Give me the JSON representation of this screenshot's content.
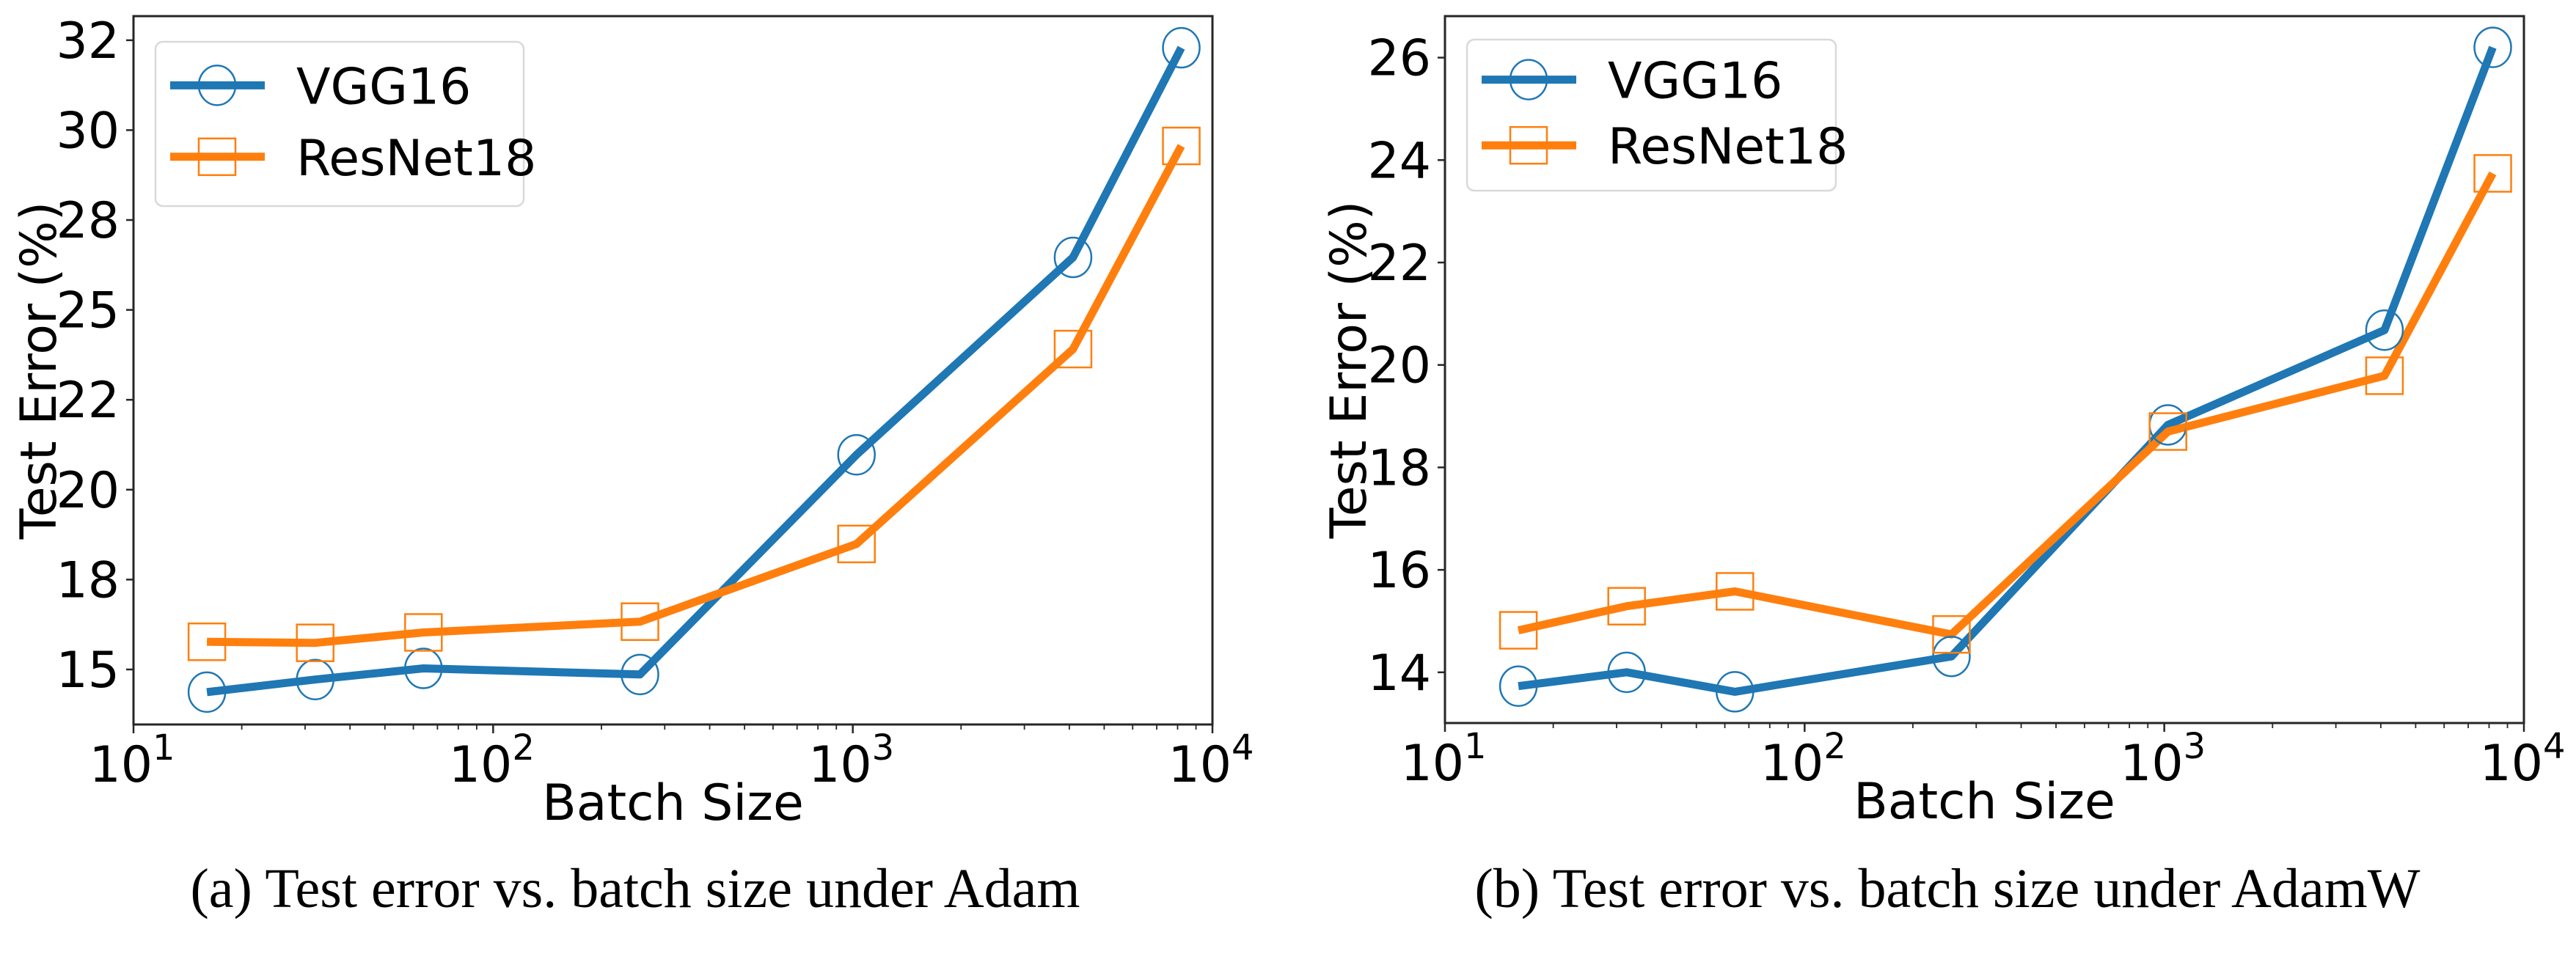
{
  "figure": {
    "captions": [
      "(a) Test error vs. batch size under Adam",
      "(b) Test error vs. batch size under AdamW"
    ]
  },
  "colors": {
    "vgg16": "#1f77b4",
    "resnet18": "#ff7f0e",
    "axes": "#262626",
    "legend_border": "#d9d9d9"
  },
  "chart_data": [
    {
      "type": "line",
      "title": "(a) Test error vs. batch size under Adam",
      "xlabel": "Batch Size",
      "ylabel": "Test Error (%)",
      "xscale": "log",
      "xlim": [
        10,
        10000
      ],
      "ylim": [
        13.47,
        33.17
      ],
      "xticks": [
        {
          "value": 10,
          "base": "10",
          "exp": "1"
        },
        {
          "value": 100,
          "base": "10",
          "exp": "2"
        },
        {
          "value": 1000,
          "base": "10",
          "exp": "3"
        },
        {
          "value": 10000,
          "base": "10",
          "exp": "4"
        }
      ],
      "yticks": [
        {
          "value": 15,
          "label": "15"
        },
        {
          "value": 17.5,
          "label": "18"
        },
        {
          "value": 20,
          "label": "20"
        },
        {
          "value": 22.5,
          "label": "22"
        },
        {
          "value": 25,
          "label": "25"
        },
        {
          "value": 27.5,
          "label": "28"
        },
        {
          "value": 30,
          "label": "30"
        },
        {
          "value": 32.5,
          "label": "32"
        }
      ],
      "grid": false,
      "legend_position": "upper-left",
      "x": [
        16,
        32,
        64,
        256,
        1024,
        4096,
        8192
      ],
      "series": [
        {
          "name": "VGG16",
          "marker": "circle",
          "color_key": "vgg16",
          "values": [
            14.37,
            14.72,
            15.03,
            14.86,
            20.97,
            26.46,
            32.29
          ]
        },
        {
          "name": "ResNet18",
          "marker": "square",
          "color_key": "resnet18",
          "values": [
            15.77,
            15.74,
            16.03,
            16.33,
            18.49,
            23.91,
            29.56
          ]
        }
      ]
    },
    {
      "type": "line",
      "title": "(b) Test error vs. batch size under AdamW",
      "xlabel": "Batch Size",
      "ylabel": "Test Error (%)",
      "xscale": "log",
      "xlim": [
        10,
        10000
      ],
      "ylim": [
        13.01,
        26.81
      ],
      "xticks": [
        {
          "value": 10,
          "base": "10",
          "exp": "1"
        },
        {
          "value": 100,
          "base": "10",
          "exp": "2"
        },
        {
          "value": 1000,
          "base": "10",
          "exp": "3"
        },
        {
          "value": 10000,
          "base": "10",
          "exp": "4"
        }
      ],
      "yticks": [
        {
          "value": 14,
          "label": "14"
        },
        {
          "value": 16,
          "label": "16"
        },
        {
          "value": 18,
          "label": "18"
        },
        {
          "value": 20,
          "label": "20"
        },
        {
          "value": 22,
          "label": "22"
        },
        {
          "value": 24,
          "label": "24"
        },
        {
          "value": 26,
          "label": "26"
        }
      ],
      "grid": false,
      "legend_position": "upper-left",
      "x": [
        16,
        32,
        64,
        256,
        1024,
        4096,
        8192
      ],
      "series": [
        {
          "name": "VGG16",
          "marker": "circle",
          "color_key": "vgg16",
          "values": [
            13.73,
            14.0,
            13.62,
            14.31,
            18.83,
            20.68,
            26.2
          ]
        },
        {
          "name": "ResNet18",
          "marker": "square",
          "color_key": "resnet18",
          "values": [
            14.82,
            15.29,
            15.58,
            14.74,
            18.7,
            19.79,
            23.74
          ]
        }
      ]
    }
  ]
}
